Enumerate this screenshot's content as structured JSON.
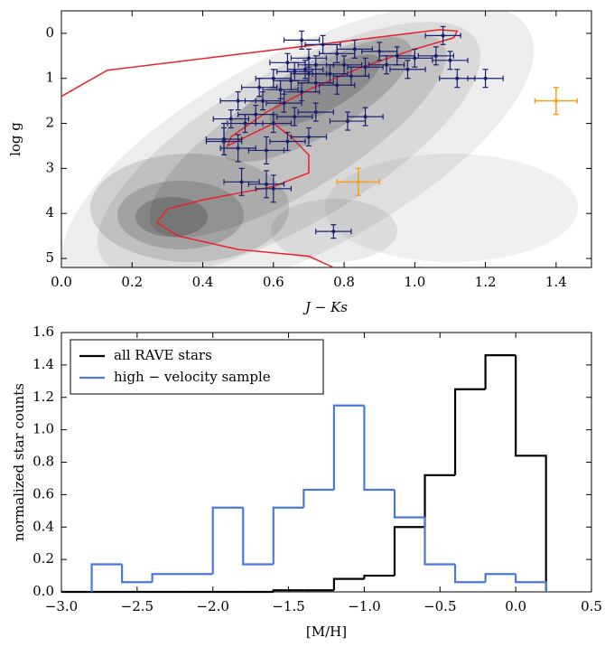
{
  "chart_data": [
    {
      "type": "scatter",
      "xlabel": "J − Ks",
      "ylabel": "log g",
      "xlim": [
        0,
        1.5
      ],
      "ylim": [
        5.2,
        -0.5
      ],
      "xticks": [
        {
          "value": 0,
          "label": "0.0"
        },
        0.2,
        0.4,
        0.6,
        0.8,
        {
          "value": 1,
          "label": "1.0"
        },
        1.2,
        1.4
      ],
      "yticks": [
        0,
        1,
        2,
        3,
        4,
        5
      ],
      "points": {
        "color": "#1a1f6e",
        "x": [
          1.08,
          0.68,
          0.74,
          0.83,
          0.9,
          0.95,
          1.0,
          1.06,
          1.1,
          0.78,
          0.7,
          0.64,
          0.72,
          0.8,
          0.86,
          0.92,
          0.98,
          0.66,
          0.7,
          0.76,
          0.82,
          0.6,
          0.65,
          0.72,
          0.78,
          0.56,
          0.62,
          0.68,
          0.5,
          0.57,
          0.63,
          0.55,
          0.48,
          0.52,
          0.6,
          0.66,
          0.72,
          0.81,
          0.86,
          0.46,
          0.5,
          0.58,
          0.64,
          0.7,
          0.46,
          1.12,
          1.2,
          0.51,
          0.58,
          0.6,
          0.77,
          0.69
        ],
        "y": [
          0.05,
          0.15,
          0.25,
          0.35,
          0.4,
          0.5,
          0.55,
          0.5,
          0.6,
          0.45,
          0.55,
          0.65,
          0.7,
          0.7,
          0.75,
          0.7,
          0.8,
          0.85,
          0.9,
          0.9,
          0.95,
          1.0,
          1.05,
          1.1,
          1.15,
          1.2,
          1.25,
          1.3,
          1.5,
          1.5,
          1.55,
          1.8,
          1.9,
          2.0,
          2.0,
          1.85,
          1.75,
          1.95,
          1.85,
          2.35,
          2.55,
          2.6,
          2.4,
          2.3,
          2.4,
          1.0,
          1.0,
          3.3,
          3.35,
          3.45,
          4.4,
          0.8
        ],
        "xerr": [
          0.05,
          0.05,
          0.05,
          0.05,
          0.05,
          0.05,
          0.05,
          0.05,
          0.05,
          0.05,
          0.05,
          0.05,
          0.05,
          0.05,
          0.05,
          0.05,
          0.05,
          0.05,
          0.05,
          0.05,
          0.05,
          0.05,
          0.05,
          0.05,
          0.05,
          0.05,
          0.05,
          0.05,
          0.05,
          0.05,
          0.05,
          0.05,
          0.05,
          0.05,
          0.05,
          0.05,
          0.05,
          0.05,
          0.05,
          0.05,
          0.05,
          0.05,
          0.05,
          0.05,
          0.05,
          0.05,
          0.05,
          0.05,
          0.05,
          0.05,
          0.05,
          0.05
        ],
        "yerr": [
          0.2,
          0.2,
          0.2,
          0.2,
          0.2,
          0.2,
          0.2,
          0.2,
          0.2,
          0.2,
          0.2,
          0.2,
          0.2,
          0.2,
          0.2,
          0.2,
          0.2,
          0.2,
          0.2,
          0.2,
          0.2,
          0.2,
          0.2,
          0.2,
          0.2,
          0.2,
          0.2,
          0.2,
          0.2,
          0.2,
          0.2,
          0.2,
          0.2,
          0.2,
          0.2,
          0.2,
          0.2,
          0.2,
          0.2,
          0.35,
          0.3,
          0.3,
          0.2,
          0.2,
          0.3,
          0.2,
          0.2,
          0.3,
          0.3,
          0.3,
          0.15,
          0.2
        ]
      },
      "highlight": {
        "color": "#f2a01e",
        "x": [
          1.4,
          0.84
        ],
        "y": [
          1.5,
          3.3
        ],
        "xerr": [
          0.06,
          0.06
        ],
        "yerr": [
          0.3,
          0.3
        ]
      },
      "line": {
        "color": "#e8222a",
        "x": [
          0,
          0.13,
          1.07,
          1.12,
          1.11,
          1.0,
          0.85,
          0.7,
          0.58,
          0.48,
          0.47,
          0.6,
          0.65,
          0.7,
          0.7,
          0.6,
          0.4,
          0.3,
          0.27,
          0.33,
          0.5,
          0.7,
          0.77
        ],
        "y": [
          1.4,
          0.82,
          -0.08,
          -0.05,
          0.1,
          0.35,
          0.75,
          1.25,
          1.75,
          2.3,
          2.5,
          2.0,
          2.3,
          2.7,
          3.1,
          3.4,
          3.7,
          3.9,
          4.2,
          4.5,
          4.8,
          4.95,
          5.2
        ]
      }
    },
    {
      "type": "histogram",
      "xlabel": "[M/H]",
      "ylabel": "normalized star counts",
      "xlim": [
        -3,
        0.5
      ],
      "ylim": [
        0,
        1.6
      ],
      "xticks": [
        {
          "value": -3,
          "label": "−3.0"
        },
        {
          "value": -2.5,
          "label": "−2.5"
        },
        {
          "value": -2,
          "label": "−2.0"
        },
        {
          "value": -1.5,
          "label": "−1.5"
        },
        {
          "value": -1,
          "label": "−1.0"
        },
        {
          "value": -0.5,
          "label": "−0.5"
        },
        {
          "value": 0,
          "label": "0.0"
        },
        0.5
      ],
      "yticks": [
        {
          "value": 0,
          "label": "0.0"
        },
        0.2,
        0.4,
        0.6,
        0.8,
        {
          "value": 1,
          "label": "1.0"
        },
        1.2,
        1.4,
        1.6
      ],
      "legend": "upper left",
      "series": [
        {
          "name": "all RAVE stars",
          "color": "#000000",
          "bins": [
            -3.0,
            -2.8,
            -2.6,
            -2.4,
            -2.2,
            -2.0,
            -1.8,
            -1.6,
            -1.4,
            -1.2,
            -1.0,
            -0.8,
            -0.6,
            -0.4,
            -0.2,
            0.0,
            0.2
          ],
          "values": [
            0,
            0,
            0,
            0,
            0,
            0,
            0,
            0.01,
            0.01,
            0.08,
            0.1,
            0.4,
            0.72,
            1.25,
            1.46,
            0.84
          ]
        },
        {
          "name": "high − velocity sample",
          "color": "#4a78d8",
          "bins": [
            -2.8,
            -2.6,
            -2.4,
            -2.2,
            -2.0,
            -1.8,
            -1.6,
            -1.4,
            -1.2,
            -1.0,
            -0.8,
            -0.6,
            -0.4,
            -0.2,
            0.0,
            0.2
          ],
          "values": [
            0.17,
            0.06,
            0.11,
            0.11,
            0.52,
            0.17,
            0.52,
            0.63,
            1.15,
            0.63,
            0.46,
            0.17,
            0.06,
            0.11,
            0.06
          ]
        }
      ]
    }
  ]
}
